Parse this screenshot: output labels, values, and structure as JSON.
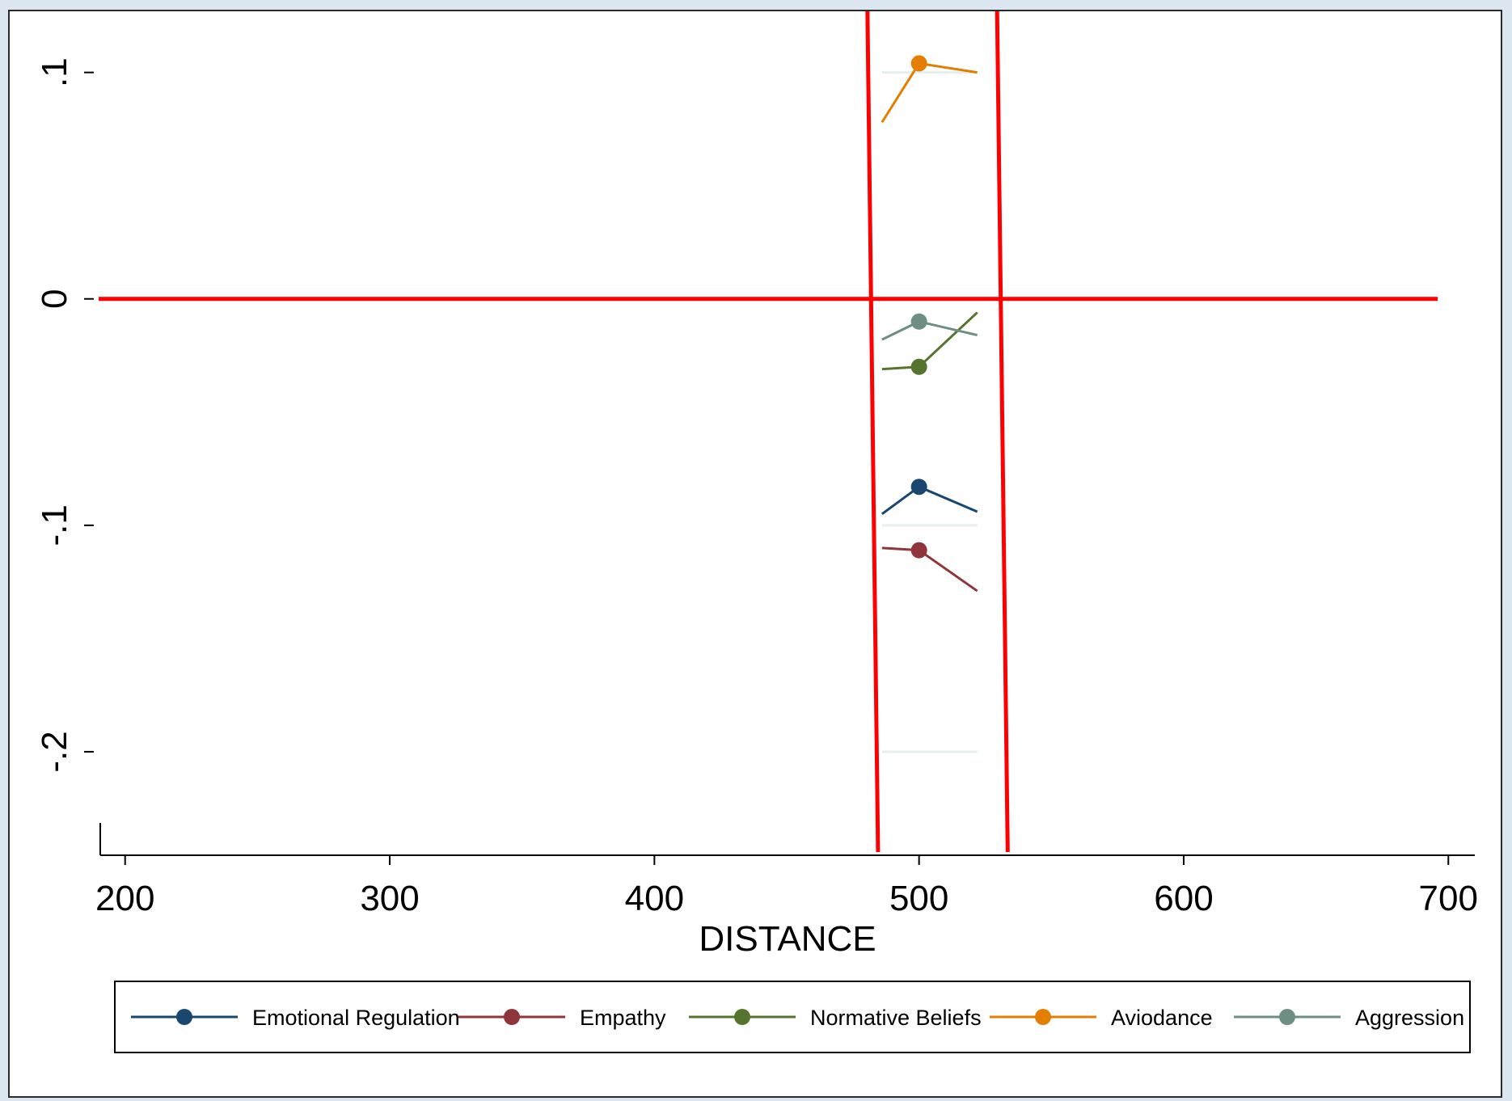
{
  "chart_data": {
    "type": "line",
    "xlabel": "DISTANCE",
    "ylabel": "",
    "xlim": [
      190,
      710
    ],
    "ylim": [
      -0.245,
      0.127
    ],
    "x_ticks": [
      200,
      300,
      400,
      500,
      600,
      700
    ],
    "x_tick_labels": [
      "200",
      "300",
      "400",
      "500",
      "600",
      "700"
    ],
    "y_ticks": [
      -0.2,
      -0.1,
      0,
      0.1
    ],
    "y_tick_labels": [
      "-.2",
      "-.1",
      "0",
      ".1"
    ],
    "grid": false,
    "legend_position": "bottom",
    "x": [
      486,
      500,
      522
    ],
    "series": [
      {
        "name": "Emotional Regulation",
        "color": "#1a476f",
        "values": [
          -0.095,
          -0.083,
          -0.094
        ]
      },
      {
        "name": "Empathy",
        "color": "#90353b",
        "values": [
          -0.11,
          -0.111,
          -0.129
        ]
      },
      {
        "name": "Normative Beliefs",
        "color": "#55752f",
        "values": [
          -0.031,
          -0.03,
          -0.006
        ]
      },
      {
        "name": "Aviodance",
        "color": "#e37e00",
        "values": [
          0.078,
          0.104,
          0.1
        ]
      },
      {
        "name": "Aggression",
        "color": "#6e8e84",
        "values": [
          -0.018,
          -0.01,
          -0.016
        ]
      }
    ],
    "reference_lines": {
      "color": "#ff0000",
      "horizontal": {
        "y": 0,
        "x_from": 190,
        "x_to": 696
      },
      "vertical": [
        {
          "x_top": 480.5,
          "x_bottom": 484.5
        },
        {
          "x_top": 529.5,
          "x_bottom": 533.5
        }
      ]
    },
    "faint_lines": {
      "color": "#e6eeee",
      "x_from": 486,
      "x_to": 522,
      "y_values": [
        0.1,
        -0.1,
        -0.2
      ]
    }
  }
}
